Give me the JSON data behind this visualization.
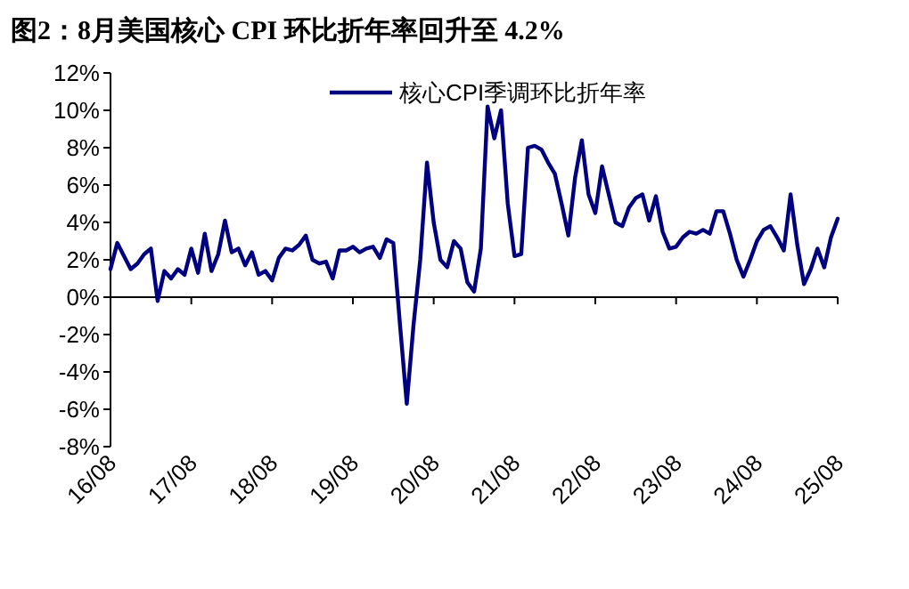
{
  "chart_data": {
    "type": "line",
    "title": "图2：8月美国核心 CPI 环比折年率回升至 4.2%",
    "categories": [
      "16/08",
      null,
      null,
      null,
      null,
      null,
      null,
      null,
      null,
      null,
      null,
      null,
      "17/08",
      null,
      null,
      null,
      null,
      null,
      null,
      null,
      null,
      null,
      null,
      null,
      "18/08",
      null,
      null,
      null,
      null,
      null,
      null,
      null,
      null,
      null,
      null,
      null,
      "19/08",
      null,
      null,
      null,
      null,
      null,
      null,
      null,
      null,
      null,
      null,
      null,
      "20/08",
      null,
      null,
      null,
      null,
      null,
      null,
      null,
      null,
      null,
      null,
      null,
      "21/08",
      null,
      null,
      null,
      null,
      null,
      null,
      null,
      null,
      null,
      null,
      null,
      "22/08",
      null,
      null,
      null,
      null,
      null,
      null,
      null,
      null,
      null,
      null,
      null,
      "23/08",
      null,
      null,
      null,
      null,
      null,
      null,
      null,
      null,
      null,
      null,
      null,
      "24/08",
      null,
      null,
      null,
      null,
      null,
      null,
      null,
      null,
      null,
      null,
      null,
      "25/08"
    ],
    "series": [
      {
        "name": "核心CPI季调环比折年率",
        "color": "#000080",
        "values": [
          1.5,
          2.9,
          2.2,
          1.5,
          1.8,
          2.3,
          2.6,
          -0.2,
          1.4,
          1.0,
          1.5,
          1.2,
          2.6,
          1.3,
          3.4,
          1.4,
          2.3,
          4.1,
          2.4,
          2.6,
          1.7,
          2.4,
          1.2,
          1.4,
          0.9,
          2.1,
          2.6,
          2.5,
          2.8,
          3.3,
          2.0,
          1.8,
          1.9,
          1.0,
          2.5,
          2.5,
          2.7,
          2.4,
          2.6,
          2.7,
          2.1,
          3.1,
          2.9,
          -1.5,
          -5.7,
          -1.5,
          2.0,
          7.2,
          4.0,
          2.0,
          1.6,
          3.0,
          2.6,
          0.8,
          0.3,
          2.6,
          10.2,
          8.5,
          10.0,
          5.0,
          2.2,
          2.3,
          8.0,
          8.1,
          7.9,
          7.2,
          6.6,
          5.0,
          3.3,
          6.4,
          8.4,
          5.5,
          4.5,
          7.0,
          5.5,
          4.0,
          3.8,
          4.8,
          5.3,
          5.5,
          4.1,
          5.4,
          3.5,
          2.6,
          2.7,
          3.2,
          3.5,
          3.4,
          3.6,
          3.4,
          4.6,
          4.6,
          3.4,
          2.0,
          1.1,
          2.0,
          3.0,
          3.6,
          3.8,
          3.2,
          2.5,
          5.5,
          2.8,
          0.7,
          1.5,
          2.6,
          1.6,
          3.2,
          4.2
        ]
      }
    ],
    "ylim": [
      -8,
      12
    ],
    "yticks": [
      {
        "value": -8,
        "label": "-8%"
      },
      {
        "value": -6,
        "label": "-6%"
      },
      {
        "value": -4,
        "label": "-4%"
      },
      {
        "value": -2,
        "label": "-2%"
      },
      {
        "value": 0,
        "label": "0%"
      },
      {
        "value": 2,
        "label": "2%"
      },
      {
        "value": 4,
        "label": "4%"
      },
      {
        "value": 6,
        "label": "6%"
      },
      {
        "value": 8,
        "label": "8%"
      },
      {
        "value": 10,
        "label": "10%"
      },
      {
        "value": 12,
        "label": "12%"
      }
    ],
    "legend": "top right",
    "line_style": "solid",
    "marker": "none"
  }
}
